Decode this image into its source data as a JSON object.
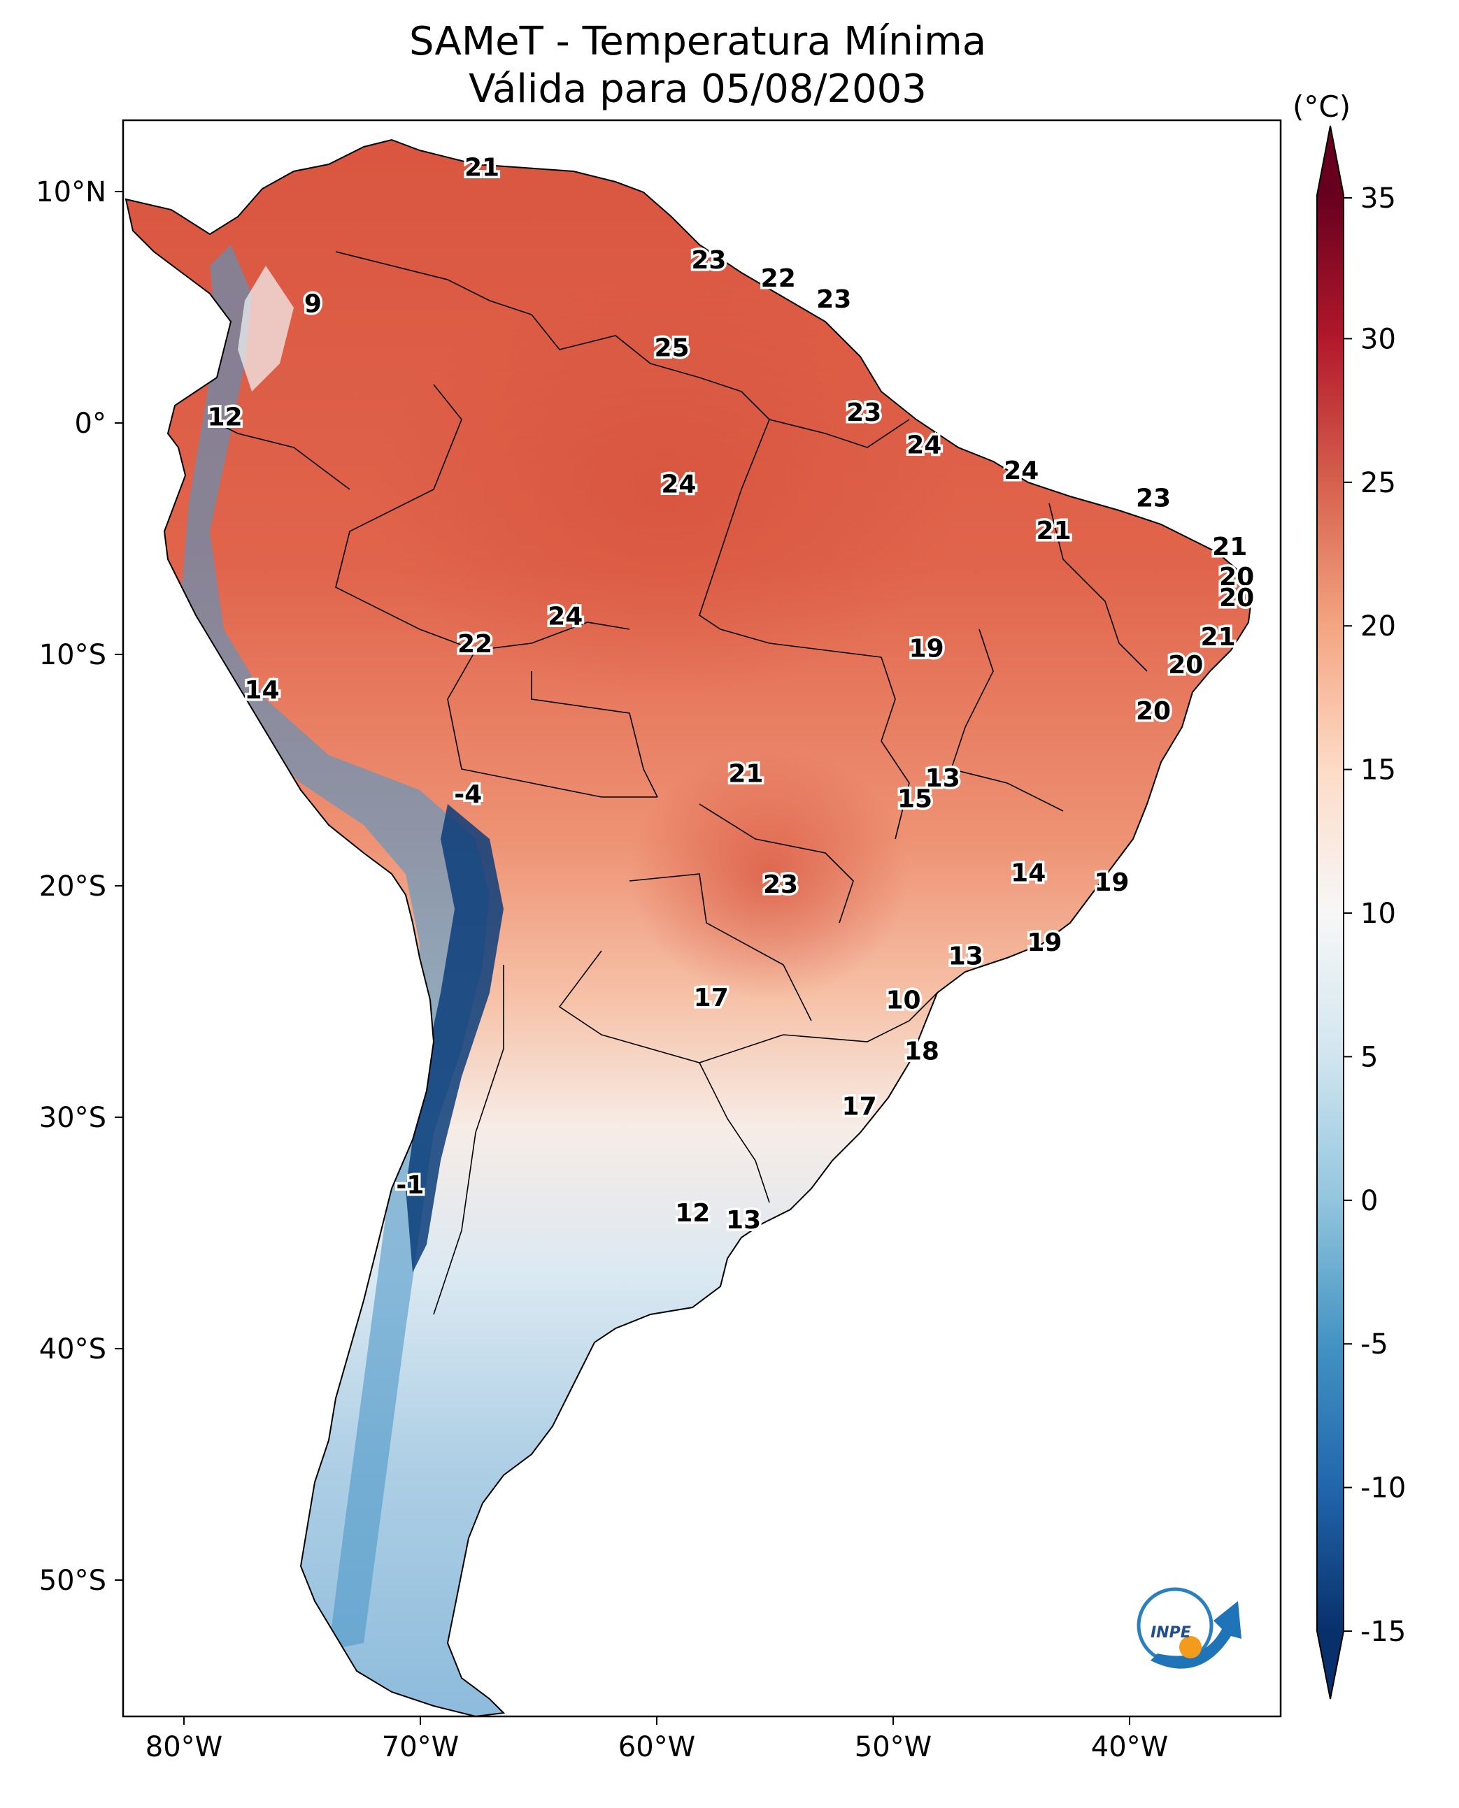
{
  "title": {
    "line1": "SAMeT - Temperatura Mínima",
    "line2": "Válida para 05/08/2003"
  },
  "colorbar": {
    "unit": "(°C)",
    "ticks": [
      35,
      30,
      25,
      20,
      15,
      10,
      5,
      0,
      -5,
      -10,
      -15
    ],
    "tick_labels": [
      "35",
      "30",
      "25",
      "20",
      "15",
      "10",
      "5",
      "0",
      "-5",
      "-10",
      "-15"
    ],
    "range": [
      -15,
      35
    ],
    "colors": [
      "#08306b",
      "#2166ac",
      "#4393c3",
      "#92c5de",
      "#d1e5f0",
      "#f7f7f7",
      "#fddbc7",
      "#f4a582",
      "#d6604d",
      "#b2182b",
      "#67001f"
    ]
  },
  "axes": {
    "lon_labels": [
      "80°W",
      "70°W",
      "60°W",
      "50°W",
      "40°W"
    ],
    "lat_labels": [
      "10°N",
      "0°",
      "10°S",
      "20°S",
      "30°S",
      "40°S",
      "50°S"
    ]
  },
  "chart_data": {
    "type": "map",
    "title": "SAMeT - Temperatura Mínima Válida para 05/08/2003",
    "xlim": [
      -83,
      -33
    ],
    "ylim": [
      -56,
      13
    ],
    "station_values": [
      {
        "lon": -67.5,
        "lat": 10.6,
        "value": 21
      },
      {
        "lon": -57.7,
        "lat": 6.6,
        "value": 23
      },
      {
        "lon": -54.7,
        "lat": 5.8,
        "value": 22
      },
      {
        "lon": -52.3,
        "lat": 4.9,
        "value": 23
      },
      {
        "lon": -74.8,
        "lat": 4.7,
        "value": 9
      },
      {
        "lon": -59.3,
        "lat": 2.8,
        "value": 25
      },
      {
        "lon": -78.6,
        "lat": -0.2,
        "value": 12
      },
      {
        "lon": -51.0,
        "lat": 0.0,
        "value": 23
      },
      {
        "lon": -48.4,
        "lat": -1.4,
        "value": 24
      },
      {
        "lon": -59.0,
        "lat": -3.1,
        "value": 24
      },
      {
        "lon": -44.2,
        "lat": -2.5,
        "value": 24
      },
      {
        "lon": -38.5,
        "lat": -3.7,
        "value": 23
      },
      {
        "lon": -42.8,
        "lat": -5.1,
        "value": 21
      },
      {
        "lon": -35.2,
        "lat": -5.8,
        "value": 21
      },
      {
        "lon": -34.9,
        "lat": -7.1,
        "value": 20
      },
      {
        "lon": -34.9,
        "lat": -8.0,
        "value": 20
      },
      {
        "lon": -63.9,
        "lat": -8.8,
        "value": 24
      },
      {
        "lon": -67.8,
        "lat": -10.0,
        "value": 22
      },
      {
        "lon": -48.3,
        "lat": -10.2,
        "value": 19
      },
      {
        "lon": -35.7,
        "lat": -9.7,
        "value": 21
      },
      {
        "lon": -37.1,
        "lat": -10.9,
        "value": 20
      },
      {
        "lon": -38.5,
        "lat": -12.9,
        "value": 20
      },
      {
        "lon": -77.0,
        "lat": -12.0,
        "value": 14
      },
      {
        "lon": -56.1,
        "lat": -15.6,
        "value": 21
      },
      {
        "lon": -47.6,
        "lat": -15.8,
        "value": 13
      },
      {
        "lon": -48.8,
        "lat": -16.7,
        "value": 15
      },
      {
        "lon": -68.1,
        "lat": -16.5,
        "value": -4
      },
      {
        "lon": -54.6,
        "lat": -20.4,
        "value": 23
      },
      {
        "lon": -43.9,
        "lat": -19.9,
        "value": 14
      },
      {
        "lon": -40.3,
        "lat": -20.3,
        "value": 19
      },
      {
        "lon": -43.2,
        "lat": -22.9,
        "value": 19
      },
      {
        "lon": -46.6,
        "lat": -23.5,
        "value": 13
      },
      {
        "lon": -57.6,
        "lat": -25.3,
        "value": 17
      },
      {
        "lon": -49.3,
        "lat": -25.4,
        "value": 10
      },
      {
        "lon": -48.5,
        "lat": -27.6,
        "value": 18
      },
      {
        "lon": -51.2,
        "lat": -30.0,
        "value": 17
      },
      {
        "lon": -70.6,
        "lat": -33.4,
        "value": -1
      },
      {
        "lon": -58.4,
        "lat": -34.6,
        "value": 12
      },
      {
        "lon": -56.2,
        "lat": -34.9,
        "value": 13
      }
    ]
  }
}
